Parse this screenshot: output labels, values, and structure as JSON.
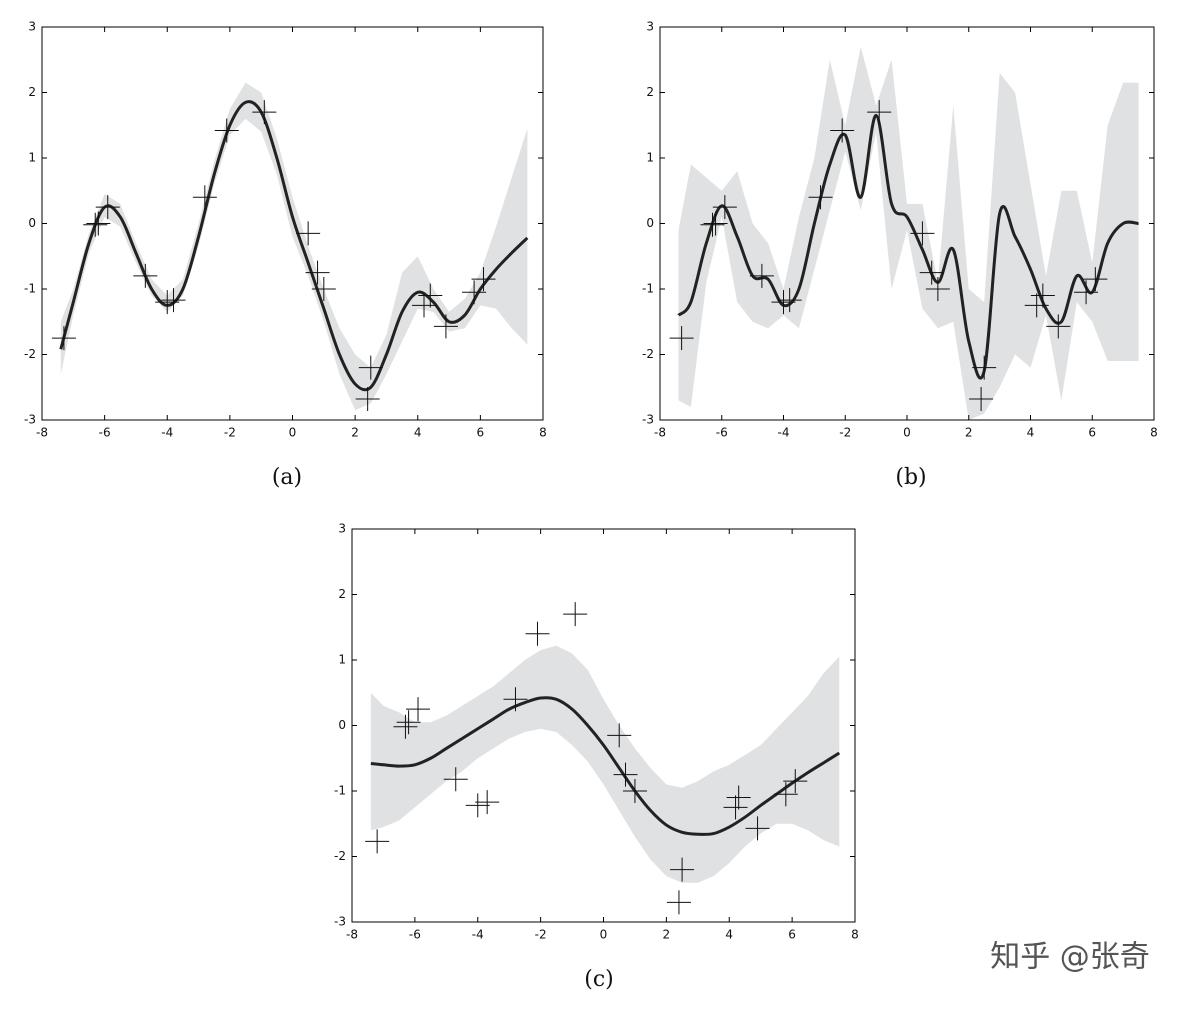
{
  "chart_data": [
    {
      "type": "line",
      "caption": "(a)",
      "xlim": [
        -8,
        8
      ],
      "ylim": [
        -3,
        3
      ],
      "xticks": [
        -8,
        -6,
        -4,
        -2,
        0,
        2,
        4,
        6,
        8
      ],
      "yticks": [
        -3,
        -2,
        -1,
        0,
        1,
        2,
        3
      ],
      "line_color": "#222222",
      "band_color": "#e0e1e2",
      "marker_color": "#111111",
      "x": [
        -7.4,
        -7,
        -6.5,
        -6,
        -5.5,
        -5,
        -4.5,
        -4,
        -3.5,
        -3,
        -2.5,
        -2,
        -1.5,
        -1,
        -0.5,
        0,
        0.5,
        1,
        1.5,
        2,
        2.5,
        3,
        3.5,
        4,
        4.5,
        5,
        5.5,
        6,
        6.5,
        7,
        7.5
      ],
      "mean": [
        -1.92,
        -1.2,
        -0.3,
        0.25,
        0.1,
        -0.45,
        -1.0,
        -1.25,
        -1.0,
        -0.2,
        0.75,
        1.5,
        1.85,
        1.7,
        1.0,
        0.1,
        -0.6,
        -1.3,
        -2.0,
        -2.45,
        -2.5,
        -2.0,
        -1.35,
        -1.05,
        -1.2,
        -1.5,
        -1.4,
        -1.0,
        -0.7,
        -0.45,
        -0.22
      ],
      "lower": [
        -2.3,
        -1.4,
        -0.45,
        0.1,
        -0.05,
        -0.6,
        -1.1,
        -1.35,
        -1.1,
        -0.35,
        0.6,
        1.35,
        1.6,
        1.4,
        0.75,
        -0.2,
        -0.8,
        -1.5,
        -2.3,
        -2.85,
        -2.75,
        -2.3,
        -1.8,
        -1.3,
        -1.35,
        -1.65,
        -1.6,
        -1.25,
        -1.3,
        -1.6,
        -1.85
      ],
      "upper": [
        -1.5,
        -1.0,
        -0.15,
        0.45,
        0.3,
        -0.3,
        -0.85,
        -1.1,
        -0.85,
        0.0,
        0.95,
        1.75,
        2.15,
        2.0,
        1.3,
        0.4,
        -0.35,
        -1.0,
        -1.6,
        -2.0,
        -2.2,
        -1.7,
        -0.75,
        -0.5,
        -1.0,
        -1.35,
        -1.15,
        -0.75,
        -0.05,
        0.7,
        1.45
      ],
      "points": {
        "x": [
          -7.3,
          -6.3,
          -6.2,
          -5.9,
          -4.7,
          -4.0,
          -3.8,
          -2.8,
          -2.1,
          -0.9,
          0.5,
          0.8,
          1.0,
          2.4,
          2.5,
          4.2,
          4.4,
          4.9,
          5.8,
          6.1
        ],
        "y": [
          -1.75,
          -0.02,
          0.0,
          0.25,
          -0.8,
          -1.2,
          -1.17,
          0.4,
          1.42,
          1.7,
          -0.15,
          -0.75,
          -1.0,
          -2.68,
          -2.2,
          -1.25,
          -1.1,
          -1.57,
          -1.05,
          -0.85
        ]
      }
    },
    {
      "type": "line",
      "caption": "(b)",
      "xlim": [
        -8,
        8
      ],
      "ylim": [
        -3,
        3
      ],
      "xticks": [
        -8,
        -6,
        -4,
        -2,
        0,
        2,
        4,
        6,
        8
      ],
      "yticks": [
        -3,
        -2,
        -1,
        0,
        1,
        2,
        3
      ],
      "line_color": "#222222",
      "band_color": "#e0e1e2",
      "marker_color": "#111111",
      "x": [
        -7.4,
        -7,
        -6.5,
        -6,
        -5.5,
        -5,
        -4.5,
        -4,
        -3.5,
        -3,
        -2.5,
        -2,
        -1.5,
        -1,
        -0.5,
        0,
        0.5,
        1,
        1.5,
        2,
        2.5,
        3,
        3.5,
        4,
        4.5,
        5,
        5.5,
        6,
        6.5,
        7,
        7.5
      ],
      "mean": [
        -1.4,
        -1.2,
        -0.3,
        0.27,
        -0.2,
        -0.8,
        -0.85,
        -1.25,
        -1.0,
        0.0,
        0.9,
        1.35,
        0.4,
        1.65,
        0.3,
        0.1,
        -0.4,
        -0.9,
        -0.4,
        -1.8,
        -2.25,
        0.15,
        -0.2,
        -0.7,
        -1.3,
        -1.5,
        -0.8,
        -1.05,
        -0.3,
        0.0,
        0.0
      ],
      "lower": [
        -2.7,
        -2.8,
        -0.9,
        0.1,
        -1.2,
        -1.5,
        -1.6,
        -1.4,
        -1.6,
        -0.7,
        0.2,
        1.1,
        0.2,
        1.4,
        -1.0,
        -0.1,
        -1.3,
        -1.6,
        -1.5,
        -3.0,
        -2.9,
        -2.5,
        -2.0,
        -2.2,
        -1.4,
        -2.7,
        -1.2,
        -1.5,
        -2.1,
        -2.1,
        -2.1
      ],
      "upper": [
        -0.1,
        0.9,
        0.7,
        0.5,
        0.8,
        0.0,
        -0.3,
        -1.0,
        0.1,
        1.0,
        2.5,
        1.5,
        2.7,
        1.8,
        2.5,
        0.3,
        0.3,
        -0.9,
        1.8,
        -1.0,
        -1.2,
        2.3,
        2.0,
        0.6,
        -0.8,
        0.5,
        0.5,
        -0.6,
        1.5,
        2.15,
        2.15
      ],
      "points": {
        "x": [
          -7.3,
          -6.3,
          -6.2,
          -5.9,
          -4.7,
          -4.0,
          -3.8,
          -2.8,
          -2.1,
          -0.9,
          0.5,
          0.8,
          1.0,
          2.4,
          2.5,
          4.2,
          4.4,
          4.9,
          5.8,
          6.1
        ],
        "y": [
          -1.75,
          -0.02,
          0.0,
          0.25,
          -0.8,
          -1.2,
          -1.17,
          0.4,
          1.42,
          1.7,
          -0.15,
          -0.75,
          -1.0,
          -2.68,
          -2.2,
          -1.25,
          -1.1,
          -1.57,
          -1.05,
          -0.85
        ]
      }
    },
    {
      "type": "line",
      "caption": "(c)",
      "xlim": [
        -8,
        8
      ],
      "ylim": [
        -3,
        3
      ],
      "xticks": [
        -8,
        -6,
        -4,
        -2,
        0,
        2,
        4,
        6,
        8
      ],
      "yticks": [
        -3,
        -2,
        -1,
        0,
        1,
        2,
        3
      ],
      "line_color": "#222222",
      "band_color": "#e0e1e2",
      "marker_color": "#111111",
      "x": [
        -7.4,
        -7,
        -6.5,
        -6,
        -5.5,
        -5,
        -4.5,
        -4,
        -3.5,
        -3,
        -2.5,
        -2,
        -1.5,
        -1,
        -0.5,
        0,
        0.5,
        1,
        1.5,
        2,
        2.5,
        3,
        3.5,
        4,
        4.5,
        5,
        5.5,
        6,
        6.5,
        7,
        7.5
      ],
      "mean": [
        -0.58,
        -0.6,
        -0.62,
        -0.6,
        -0.5,
        -0.35,
        -0.2,
        -0.05,
        0.1,
        0.25,
        0.35,
        0.42,
        0.4,
        0.25,
        0.0,
        -0.3,
        -0.65,
        -1.0,
        -1.3,
        -1.52,
        -1.63,
        -1.66,
        -1.65,
        -1.55,
        -1.4,
        -1.22,
        -1.05,
        -0.88,
        -0.72,
        -0.57,
        -0.42
      ],
      "lower": [
        -1.6,
        -1.55,
        -1.45,
        -1.25,
        -1.05,
        -0.85,
        -0.7,
        -0.5,
        -0.35,
        -0.2,
        -0.1,
        -0.05,
        -0.1,
        -0.3,
        -0.55,
        -0.9,
        -1.3,
        -1.7,
        -2.05,
        -2.3,
        -2.4,
        -2.4,
        -2.3,
        -2.1,
        -1.85,
        -1.65,
        -1.5,
        -1.5,
        -1.6,
        -1.75,
        -1.85
      ],
      "upper": [
        0.5,
        0.3,
        0.2,
        0.05,
        0.05,
        0.15,
        0.3,
        0.45,
        0.6,
        0.8,
        1.0,
        1.15,
        1.22,
        1.1,
        0.85,
        0.4,
        0.0,
        -0.35,
        -0.65,
        -0.9,
        -0.95,
        -0.85,
        -0.7,
        -0.6,
        -0.45,
        -0.3,
        -0.05,
        0.2,
        0.45,
        0.8,
        1.05
      ],
      "points": {
        "x": [
          -7.2,
          -6.3,
          -6.2,
          -5.9,
          -4.7,
          -4.0,
          -3.7,
          -2.8,
          -2.1,
          -0.9,
          0.5,
          0.7,
          1.0,
          2.4,
          2.5,
          4.2,
          4.3,
          4.9,
          5.8,
          6.1
        ],
        "y": [
          -1.77,
          -0.02,
          0.05,
          0.25,
          -0.82,
          -1.22,
          -1.17,
          0.4,
          1.4,
          1.7,
          -0.15,
          -0.75,
          -1.0,
          -2.7,
          -2.2,
          -1.25,
          -1.1,
          -1.57,
          -1.05,
          -0.85
        ]
      }
    }
  ],
  "watermark": "知乎 @张奇"
}
